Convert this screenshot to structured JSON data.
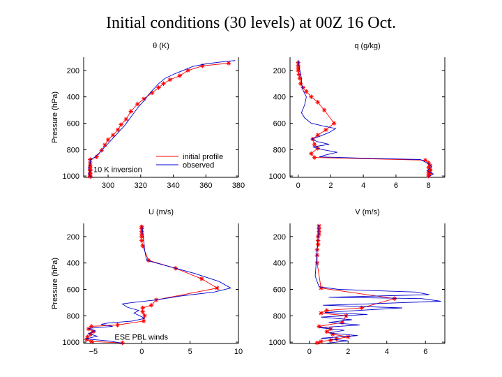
{
  "slide": {
    "title": "Initial conditions (30 levels) at 00Z 16 Oct."
  },
  "colors": {
    "profile": "#ff0000",
    "observed": "#0000cc",
    "axis": "#000000"
  },
  "chart_data": [
    {
      "id": "theta",
      "type": "line",
      "title": "θ (K)",
      "ylabel": "Pressure (hPa)",
      "xlim": [
        285,
        380
      ],
      "ylim": [
        1010,
        100
      ],
      "xticks": [
        300,
        320,
        340,
        360,
        380
      ],
      "yticks": [
        200,
        400,
        600,
        800,
        1000
      ],
      "annotations": [
        {
          "text": "10 K inversion",
          "x": 291,
          "y": 950
        }
      ],
      "legend": {
        "position": "bottom-right",
        "entries": [
          "initial profile",
          "observed"
        ]
      },
      "series": [
        {
          "name": "initial profile",
          "markers": true,
          "x": [
            374,
            358,
            349,
            344,
            338,
            334,
            331,
            327,
            322,
            318,
            314,
            311,
            308,
            306,
            303,
            300,
            298,
            296,
            293,
            289,
            289,
            289,
            289,
            289,
            289,
            289,
            289,
            289,
            289,
            289
          ],
          "y": [
            145,
            165,
            200,
            240,
            270,
            300,
            330,
            370,
            415,
            455,
            510,
            570,
            610,
            650,
            690,
            725,
            765,
            805,
            855,
            875,
            900,
            920,
            935,
            950,
            960,
            970,
            980,
            990,
            1000,
            1005
          ]
        },
        {
          "name": "observed",
          "markers": false,
          "x": [
            378,
            370,
            360,
            352,
            346,
            340,
            335,
            331,
            328,
            325,
            322,
            319,
            316,
            313,
            310,
            307,
            304,
            301,
            298,
            295,
            292,
            289,
            289,
            288,
            289,
            288,
            289,
            289
          ],
          "y": [
            125,
            135,
            150,
            170,
            200,
            230,
            260,
            300,
            340,
            380,
            430,
            470,
            520,
            570,
            620,
            660,
            700,
            740,
            780,
            820,
            855,
            880,
            910,
            940,
            965,
            985,
            1000,
            1008
          ]
        }
      ]
    },
    {
      "id": "q",
      "type": "line",
      "title": "q (g/kg)",
      "ylabel": "",
      "xlim": [
        -0.5,
        9
      ],
      "ylim": [
        1010,
        100
      ],
      "xticks": [
        0,
        2,
        4,
        6,
        8
      ],
      "yticks": [
        200,
        400,
        600,
        800,
        1000
      ],
      "series": [
        {
          "name": "initial profile",
          "markers": true,
          "x": [
            0,
            0,
            0,
            0,
            0.05,
            0.1,
            0.15,
            0.3,
            0.5,
            0.8,
            1.2,
            1.6,
            2.2,
            1.7,
            1.2,
            0.9,
            1.0,
            1.2,
            0.8,
            1.0,
            7.8,
            8.0,
            8.1,
            8.0,
            8.1,
            8.1,
            8.0,
            8.1,
            8.0,
            8.0
          ],
          "y": [
            140,
            160,
            180,
            200,
            230,
            260,
            300,
            330,
            360,
            400,
            440,
            500,
            600,
            650,
            690,
            720,
            760,
            790,
            830,
            860,
            880,
            900,
            920,
            935,
            950,
            960,
            970,
            980,
            990,
            1000
          ]
        },
        {
          "name": "observed",
          "markers": false,
          "x": [
            0,
            0.1,
            0.2,
            0.2,
            0.3,
            0.5,
            0.4,
            0.2,
            0.4,
            0.8,
            1.5,
            2.3,
            1.9,
            1.3,
            0.8,
            1.2,
            1.9,
            0.9,
            1.5,
            2.4,
            1.7,
            1.3,
            4.0,
            7.5,
            7.9,
            8.2,
            7.9,
            8.3,
            8.0
          ],
          "y": [
            120,
            200,
            260,
            300,
            350,
            400,
            460,
            520,
            560,
            600,
            620,
            640,
            670,
            700,
            720,
            740,
            760,
            780,
            800,
            820,
            840,
            855,
            865,
            875,
            900,
            930,
            960,
            985,
            1005
          ]
        }
      ]
    },
    {
      "id": "u",
      "type": "line",
      "title": "U (m/s)",
      "ylabel": "Pressure (hPa)",
      "xlim": [
        -6,
        10
      ],
      "ylim": [
        1010,
        100
      ],
      "xticks": [
        -5,
        0,
        5,
        10
      ],
      "yticks": [
        200,
        400,
        600,
        800,
        1000
      ],
      "annotations": [
        {
          "text": "ESE PBL winds",
          "x": -2.8,
          "y": 960
        }
      ],
      "series": [
        {
          "name": "initial profile",
          "markers": true,
          "x": [
            0,
            0,
            0,
            0,
            0,
            0,
            0.1,
            0.7,
            3.5,
            6.2,
            7.8,
            1.5,
            1.0,
            0.1,
            0.1,
            0.3,
            0.2,
            -2.5,
            -5.2,
            -5.5,
            -5.0,
            -5.3,
            -5.6,
            -5.7,
            -5.2,
            -2.0
          ],
          "y": [
            125,
            140,
            160,
            180,
            200,
            230,
            270,
            380,
            440,
            520,
            590,
            680,
            720,
            740,
            770,
            800,
            840,
            870,
            880,
            900,
            920,
            940,
            960,
            980,
            995,
            1005
          ]
        },
        {
          "name": "observed",
          "markers": false,
          "x": [
            0,
            0.1,
            0.2,
            0.3,
            0.5,
            1.5,
            3.0,
            5.5,
            8.0,
            9.2,
            7.5,
            4.0,
            1.5,
            -1.0,
            -2.0,
            -1.5,
            -0.3,
            -0.8,
            -0.2,
            0.3,
            -1.0,
            -3.5,
            -4.2,
            -3.0,
            -5.5,
            -4.8,
            -5.5,
            -4.6,
            -5.8,
            -3.5,
            -2.0
          ],
          "y": [
            110,
            160,
            220,
            300,
            380,
            400,
            430,
            480,
            540,
            590,
            620,
            650,
            680,
            700,
            710,
            735,
            760,
            780,
            800,
            820,
            840,
            855,
            865,
            880,
            895,
            915,
            935,
            955,
            975,
            990,
            1008
          ]
        }
      ]
    },
    {
      "id": "v",
      "type": "line",
      "title": "V (m/s)",
      "ylabel": "",
      "xlim": [
        -1,
        7
      ],
      "ylim": [
        1010,
        100
      ],
      "xticks": [
        0,
        2,
        4,
        6
      ],
      "yticks": [
        200,
        400,
        600,
        800,
        1000
      ],
      "series": [
        {
          "name": "initial profile",
          "markers": true,
          "x": [
            0.5,
            0.5,
            0.5,
            0.5,
            0.45,
            0.45,
            0.45,
            0.4,
            0.4,
            0.4,
            0.6,
            4.4,
            2.7,
            0.9,
            0.6,
            1.9,
            1.7,
            0.5,
            1.1,
            0.9,
            1.2,
            2.0,
            1.4,
            1.1,
            0.6,
            0.4
          ],
          "y": [
            120,
            140,
            160,
            180,
            200,
            230,
            260,
            300,
            340,
            400,
            590,
            670,
            740,
            760,
            780,
            800,
            850,
            880,
            900,
            920,
            940,
            960,
            975,
            985,
            995,
            1005
          ]
        },
        {
          "name": "observed",
          "markers": false,
          "x": [
            0.45,
            0.45,
            0.4,
            0.35,
            0.3,
            0.5,
            1.5,
            3.5,
            5.5,
            6.2,
            3.5,
            1.0,
            5.8,
            6.8,
            3.0,
            0.7,
            4.8,
            2.5,
            0.8,
            3.0,
            0.6,
            2.2,
            1.0,
            2.6,
            0.5,
            1.8,
            1.0,
            2.5,
            0.6,
            2.0,
            0.9
          ],
          "y": [
            110,
            200,
            300,
            400,
            500,
            580,
            600,
            610,
            620,
            640,
            650,
            660,
            670,
            690,
            710,
            720,
            740,
            760,
            775,
            790,
            810,
            830,
            850,
            870,
            890,
            910,
            930,
            950,
            970,
            990,
            1008
          ]
        }
      ]
    }
  ]
}
